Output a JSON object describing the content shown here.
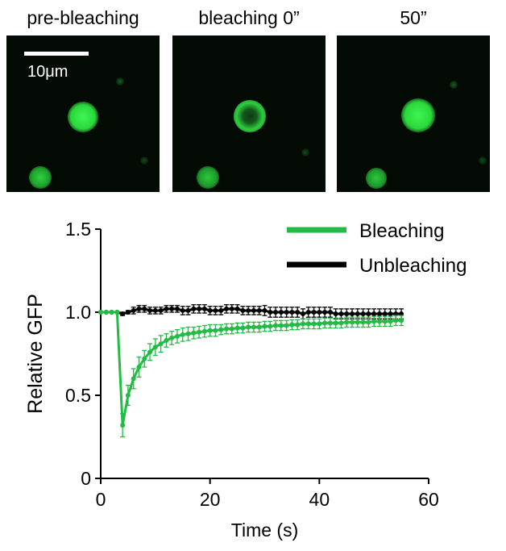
{
  "panels": [
    {
      "title": "pre-bleaching",
      "state": "intact"
    },
    {
      "title": "bleaching 0”",
      "state": "bleached"
    },
    {
      "title": "50”",
      "state": "recovered"
    }
  ],
  "scale_bar": {
    "label": "10μm"
  },
  "colors": {
    "bleaching": "#22bb44",
    "unbleaching": "#000000",
    "fluorescence": "#22dd33"
  },
  "chart_data": {
    "type": "line",
    "title": "",
    "xlabel": "Time (s)",
    "ylabel": "Relative GFP",
    "xlim": [
      0,
      60
    ],
    "ylim": [
      0,
      1.5
    ],
    "xticks": [
      0,
      20,
      40,
      60
    ],
    "yticks": [
      0,
      0.5,
      1.0,
      1.5
    ],
    "xtick_labels": [
      "0",
      "20",
      "40",
      "60"
    ],
    "ytick_labels": [
      "0",
      "0.5",
      "1.0",
      "1.5"
    ],
    "legend_position": "top-right",
    "x": [
      0,
      1,
      2,
      3,
      4,
      5,
      6,
      7,
      8,
      9,
      10,
      11,
      12,
      13,
      14,
      15,
      16,
      17,
      18,
      19,
      20,
      21,
      22,
      23,
      24,
      25,
      26,
      27,
      28,
      29,
      30,
      31,
      32,
      33,
      34,
      35,
      36,
      37,
      38,
      39,
      40,
      41,
      42,
      43,
      44,
      45,
      46,
      47,
      48,
      49,
      50,
      51,
      52,
      53,
      54,
      55
    ],
    "series": [
      {
        "name": "Bleaching",
        "color": "#22bb44",
        "values": [
          1.0,
          1.0,
          1.0,
          1.0,
          0.32,
          0.5,
          0.6,
          0.67,
          0.72,
          0.76,
          0.79,
          0.81,
          0.83,
          0.845,
          0.855,
          0.865,
          0.87,
          0.875,
          0.88,
          0.885,
          0.89,
          0.89,
          0.895,
          0.9,
          0.9,
          0.905,
          0.905,
          0.91,
          0.91,
          0.91,
          0.915,
          0.915,
          0.92,
          0.92,
          0.92,
          0.925,
          0.925,
          0.93,
          0.93,
          0.93,
          0.93,
          0.935,
          0.935,
          0.935,
          0.935,
          0.94,
          0.94,
          0.94,
          0.94,
          0.94,
          0.945,
          0.945,
          0.945,
          0.945,
          0.95,
          0.95
        ],
        "errors": [
          0.0,
          0.0,
          0.0,
          0.0,
          0.07,
          0.06,
          0.06,
          0.06,
          0.05,
          0.05,
          0.05,
          0.05,
          0.04,
          0.04,
          0.04,
          0.04,
          0.04,
          0.035,
          0.035,
          0.035,
          0.035,
          0.035,
          0.03,
          0.03,
          0.03,
          0.03,
          0.03,
          0.03,
          0.03,
          0.03,
          0.03,
          0.03,
          0.03,
          0.03,
          0.03,
          0.03,
          0.03,
          0.03,
          0.03,
          0.03,
          0.03,
          0.03,
          0.03,
          0.03,
          0.03,
          0.03,
          0.03,
          0.03,
          0.03,
          0.03,
          0.03,
          0.03,
          0.03,
          0.03,
          0.03,
          0.03
        ]
      },
      {
        "name": "Unbleaching",
        "color": "#000000",
        "values": [
          1.0,
          1.0,
          1.0,
          1.0,
          0.99,
          1.0,
          1.01,
          1.02,
          1.02,
          1.01,
          1.01,
          1.01,
          1.02,
          1.02,
          1.02,
          1.01,
          1.01,
          1.02,
          1.02,
          1.02,
          1.01,
          1.01,
          1.01,
          1.02,
          1.02,
          1.02,
          1.01,
          1.01,
          1.01,
          1.01,
          1.01,
          1.0,
          1.0,
          1.0,
          1.0,
          1.0,
          1.0,
          0.99,
          1.0,
          1.0,
          1.0,
          1.0,
          1.0,
          0.99,
          0.99,
          0.99,
          0.99,
          0.99,
          0.99,
          0.99,
          0.99,
          0.99,
          0.99,
          0.99,
          0.99,
          0.99
        ],
        "errors": [
          0.0,
          0.0,
          0.0,
          0.0,
          0.01,
          0.01,
          0.02,
          0.02,
          0.02,
          0.02,
          0.02,
          0.02,
          0.02,
          0.02,
          0.02,
          0.025,
          0.025,
          0.025,
          0.025,
          0.025,
          0.025,
          0.025,
          0.025,
          0.025,
          0.025,
          0.025,
          0.025,
          0.025,
          0.025,
          0.025,
          0.03,
          0.03,
          0.03,
          0.03,
          0.03,
          0.03,
          0.03,
          0.03,
          0.03,
          0.03,
          0.03,
          0.03,
          0.03,
          0.03,
          0.03,
          0.03,
          0.03,
          0.03,
          0.03,
          0.03,
          0.03,
          0.03,
          0.03,
          0.03,
          0.03,
          0.03
        ]
      }
    ]
  }
}
